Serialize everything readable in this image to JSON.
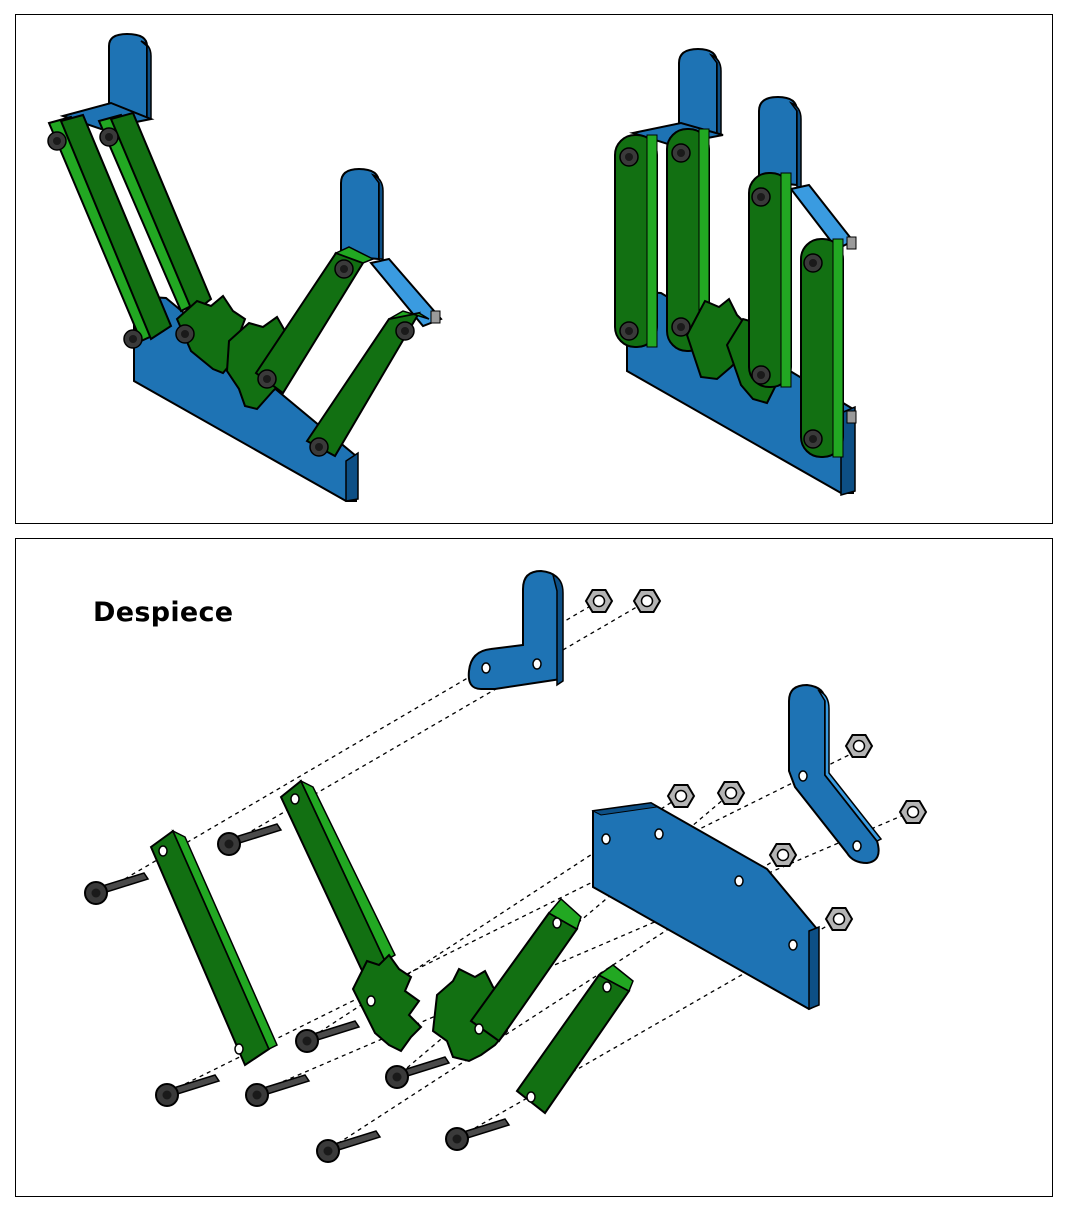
{
  "exploded_view": {
    "title": "Despiece"
  },
  "colors": {
    "blue_face": "#1e73b4",
    "blue_side": "#0d4f85",
    "blue_light": "#3a9be0",
    "green_face": "#127012",
    "green_light": "#22a822",
    "green_dark": "#084a08",
    "bolt": "#3a3a3a",
    "nut": "#b4b4b4",
    "outline": "#000000"
  }
}
